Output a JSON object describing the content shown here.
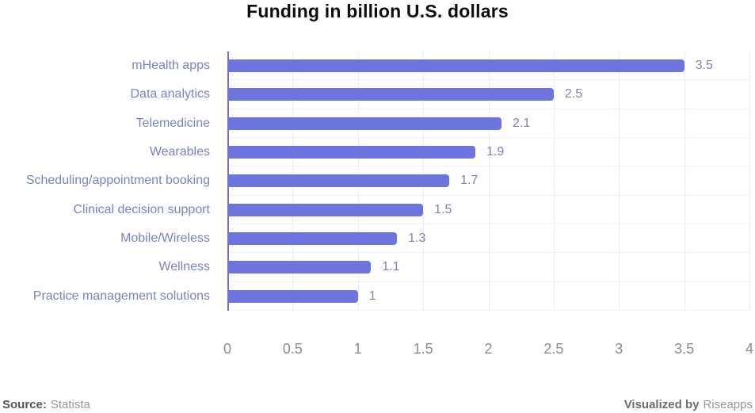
{
  "title": "Funding in billion U.S. dollars",
  "chart_data": {
    "type": "bar",
    "orientation": "horizontal",
    "title": "Funding in billion U.S. dollars",
    "categories": [
      "mHealth apps",
      "Data analytics",
      "Telemedicine",
      "Wearables",
      "Scheduling/appointment booking",
      "Clinical decision support",
      "Mobile/Wireless",
      "Wellness",
      "Practice management solutions"
    ],
    "values": [
      3.5,
      2.5,
      2.1,
      1.9,
      1.7,
      1.5,
      1.3,
      1.1,
      1
    ],
    "value_labels": [
      "3.5",
      "2.5",
      "2.1",
      "1.9",
      "1.7",
      "1.5",
      "1.3",
      "1.1",
      "1"
    ],
    "xlim": [
      0,
      4
    ],
    "x_ticks": [
      "0",
      "0.5",
      "1",
      "1.5",
      "2",
      "2.5",
      "3",
      "3.5",
      "4"
    ],
    "grid": "vertical",
    "legend": "none",
    "colors": {
      "bar": "#6e74de",
      "axis_line": "#6c72db",
      "category_label": "#7c81c4",
      "value_label": "#7e83b2",
      "tick_label": "#8c8c8c",
      "gridline": "#ececf2",
      "row_line": "#f2f2f7"
    }
  },
  "footer": {
    "source_label": "Source:",
    "source_value": "Statista",
    "visualized_label": "Visualized by",
    "visualized_value": "Riseapps"
  }
}
